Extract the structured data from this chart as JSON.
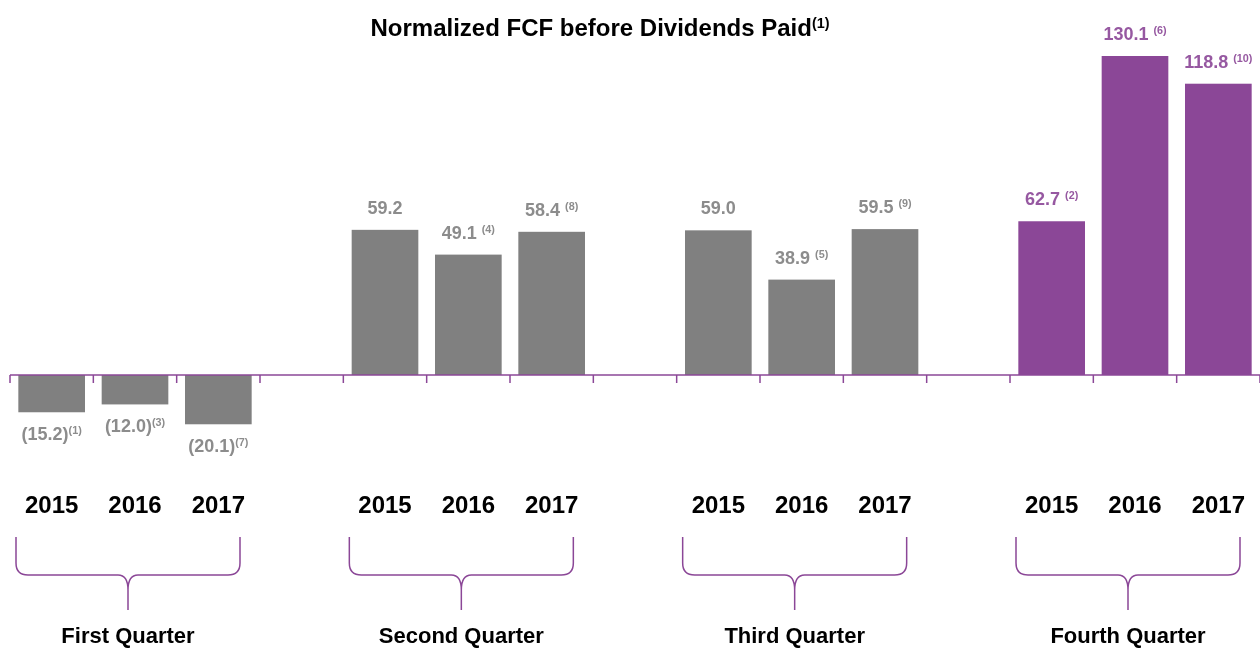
{
  "chart_data": {
    "type": "bar",
    "title": "Normalized FCF before Dividends Paid$^{(1)}$",
    "categories": [
      "2015",
      "2016",
      "2017",
      null,
      "2015",
      "2016",
      "2017",
      null,
      "2015",
      "2016",
      "2017",
      null,
      "2015",
      "2016",
      "2017"
    ],
    "values": [
      -15.2,
      -12.0,
      -20.1,
      null,
      59.2,
      49.1,
      58.4,
      null,
      59.0,
      38.9,
      59.5,
      null,
      62.7,
      130.1,
      118.8
    ],
    "colors": [
      "#808080",
      "#808080",
      "#808080",
      null,
      "#808080",
      "#808080",
      "#808080",
      null,
      "#808080",
      "#808080",
      "#808080",
      null,
      "#8b4797",
      "#8b4797",
      "#8b4797"
    ],
    "value_labels": [
      "(15.2)$^{(1)}$",
      "(12.0)$^{(3)}$",
      "(20.1)$^{(7)}$",
      null,
      "59.2",
      "49.1 $^{(4)}$",
      "58.4 $^{(8)}$",
      null,
      "59.0",
      "38.9 $^{(5)}$",
      "59.5 $^{(9)}$",
      null,
      "62.7 $^{(2)}$",
      "130.1 $^{(6)}$",
      "118.8 $^{(10)}$"
    ],
    "annotations": [
      "First Quarter",
      "Second Quarter",
      "Third Quarter",
      "Fourth Quarter"
    ],
    "ref_lines": [
      {
        "axis": "y",
        "value": 0,
        "color": "#8b4797"
      }
    ]
  }
}
